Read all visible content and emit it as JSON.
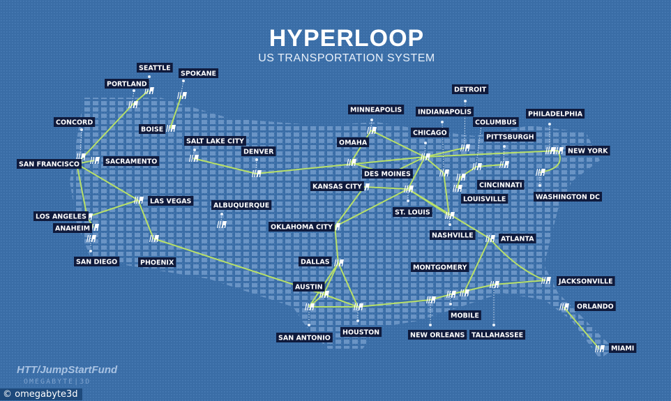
{
  "header": {
    "title": "HYPERLOOP",
    "subtitle": "US TRANSPORTATION SYSTEM"
  },
  "colors": {
    "background": "#3a6da6",
    "land_dots": "#8fb3dc",
    "route": "#b8e068",
    "label_bg": "#0f1a3c",
    "label_text": "#ffffff"
  },
  "station_icon": "hyperloop-station-icon",
  "cities": [
    "SEATTLE",
    "PORTLAND",
    "SPOKANE",
    "BOISE",
    "CONCORD",
    "SAN FRANCISCO",
    "SACRAMENTO",
    "SALT LAKE CITY",
    "DENVER",
    "LAS VEGAS",
    "ALBUQUERQUE",
    "LOS ANGELES",
    "ANAHEIM",
    "SAN DIEGO",
    "PHOENIX",
    "OMAHA",
    "MINNEAPOLIS",
    "CHICAGO",
    "DETROIT",
    "INDIANAPOLIS",
    "COLUMBUS",
    "PITTSBURGH",
    "PHILADELPHIA",
    "NEW YORK",
    "WASHINGTON DC",
    "CINCINNATI",
    "LOUISVILLE",
    "DES MOINES",
    "KANSAS CITY",
    "ST. LOUIS",
    "NASHVILLE",
    "ATLANTA",
    "OKLAHOMA CITY",
    "DALLAS",
    "AUSTIN",
    "SAN ANTONIO",
    "HOUSTON",
    "MONTGOMERY",
    "MOBILE",
    "NEW ORLEANS",
    "TALLAHASSEE",
    "JACKSONVILLE",
    "ORLANDO",
    "MIAMI"
  ],
  "routes": [
    [
      "SEATTLE",
      "PORTLAND"
    ],
    [
      "PORTLAND",
      "SAN FRANCISCO"
    ],
    [
      "SPOKANE",
      "BOISE"
    ],
    [
      "SAN FRANCISCO",
      "SACRAMENTO"
    ],
    [
      "SAN FRANCISCO",
      "LOS ANGELES"
    ],
    [
      "SAN FRANCISCO",
      "LAS VEGAS"
    ],
    [
      "LOS ANGELES",
      "LAS VEGAS"
    ],
    [
      "LOS ANGELES",
      "ANAHEIM"
    ],
    [
      "LAS VEGAS",
      "PHOENIX"
    ],
    [
      "PHOENIX",
      "AUSTIN"
    ],
    [
      "SALT LAKE CITY",
      "DENVER"
    ],
    [
      "DENVER",
      "CHICAGO"
    ],
    [
      "MINNEAPOLIS",
      "OMAHA"
    ],
    [
      "MINNEAPOLIS",
      "CHICAGO"
    ],
    [
      "OMAHA",
      "DES MOINES"
    ],
    [
      "DES MOINES",
      "CHICAGO"
    ],
    [
      "KANSAS CITY",
      "ST. LOUIS"
    ],
    [
      "KANSAS CITY",
      "OKLAHOMA CITY"
    ],
    [
      "CHICAGO",
      "ST. LOUIS"
    ],
    [
      "ST. LOUIS",
      "OKLAHOMA CITY"
    ],
    [
      "CHICAGO",
      "DETROIT"
    ],
    [
      "CHICAGO",
      "INDIANAPOLIS"
    ],
    [
      "CHICAGO",
      "NEW YORK"
    ],
    [
      "INDIANAPOLIS",
      "NASHVILLE"
    ],
    [
      "LOUISVILLE",
      "CINCINNATI"
    ],
    [
      "CINCINNATI",
      "COLUMBUS"
    ],
    [
      "COLUMBUS",
      "PITTSBURGH"
    ],
    [
      "ST. LOUIS",
      "NASHVILLE"
    ],
    [
      "ST. LOUIS",
      "ATLANTA"
    ],
    [
      "ATLANTA",
      "MONTGOMERY"
    ],
    [
      "ATLANTA",
      "JACKSONVILLE"
    ],
    [
      "JACKSONVILLE",
      "TALLAHASSEE"
    ],
    [
      "TALLAHASSEE",
      "MOBILE"
    ],
    [
      "MOBILE",
      "NEW ORLEANS"
    ],
    [
      "NEW ORLEANS",
      "HOUSTON"
    ],
    [
      "HOUSTON",
      "AUSTIN"
    ],
    [
      "HOUSTON",
      "SAN ANTONIO"
    ],
    [
      "DALLAS",
      "AUSTIN"
    ],
    [
      "DALLAS",
      "HOUSTON"
    ],
    [
      "DALLAS",
      "SAN ANTONIO"
    ],
    [
      "OKLAHOMA CITY",
      "DALLAS"
    ],
    [
      "AUSTIN",
      "SAN ANTONIO"
    ],
    [
      "ORLANDO",
      "MIAMI"
    ],
    [
      "NEW YORK",
      "PHILADELPHIA"
    ],
    [
      "NEW YORK",
      "WASHINGTON DC"
    ]
  ],
  "credit": "HTT/JumpStartFund",
  "credit_logo": "OMEGABYTE|3D",
  "copyright": "© omegabyte3d"
}
